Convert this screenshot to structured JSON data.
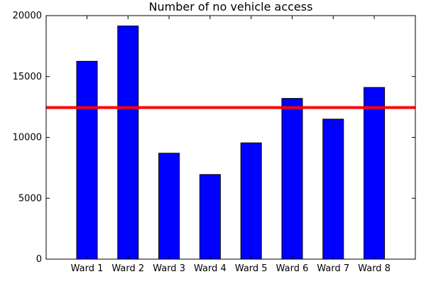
{
  "chart_data": {
    "type": "bar",
    "title": "Number of no vehicle access",
    "xlabel": "",
    "ylabel": "",
    "categories": [
      "Ward 1",
      "Ward 2",
      "Ward 3",
      "Ward 4",
      "Ward 5",
      "Ward 6",
      "Ward 7",
      "Ward 8"
    ],
    "values": [
      16250,
      19150,
      8700,
      6950,
      9550,
      13200,
      11500,
      14100
    ],
    "ylim": [
      0,
      20000
    ],
    "yticks": [
      "0",
      "5000",
      "10000",
      "15000",
      "20000"
    ],
    "reference_line": {
      "value": 12450,
      "color": "#ff0000"
    },
    "bar_color": "#0000ff",
    "grid": false
  }
}
